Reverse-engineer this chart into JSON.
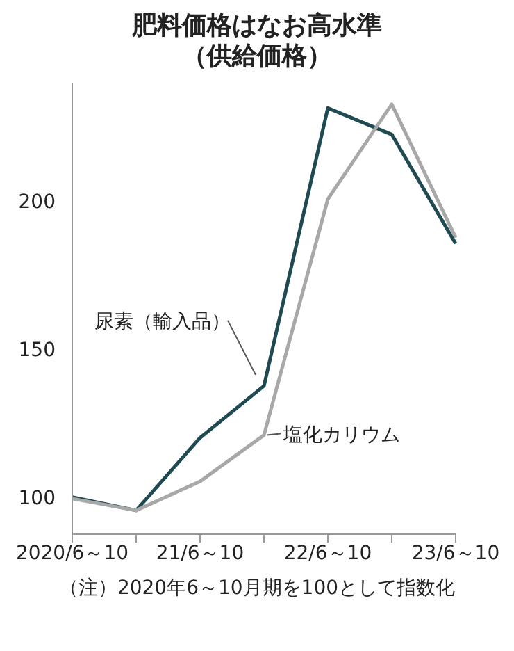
{
  "chart_data": {
    "type": "line",
    "title": "肥料価格はなお高水準",
    "subtitle": "（供給価格）",
    "categories": [
      "2020/6～10",
      null,
      "21/6～10",
      null,
      "22/6～10",
      null,
      "23/6～10"
    ],
    "series": [
      {
        "name": "尿素（輸入品）",
        "color": "#1f4a52",
        "values": [
          100.5,
          96,
          120.5,
          138,
          231.7,
          222.8,
          186
        ]
      },
      {
        "name": "塩化カリウム",
        "color": "#a8a8a8",
        "values": [
          100,
          96,
          105.8,
          121.4,
          201,
          233,
          188
        ]
      }
    ],
    "ylim": [
      88,
      240
    ],
    "yticks": [
      100,
      150,
      200
    ],
    "grid": false,
    "legend": false,
    "marker": "none",
    "line_style": "solid",
    "annotations": [
      "（注）2020年6～10月期を100として指数化"
    ]
  }
}
